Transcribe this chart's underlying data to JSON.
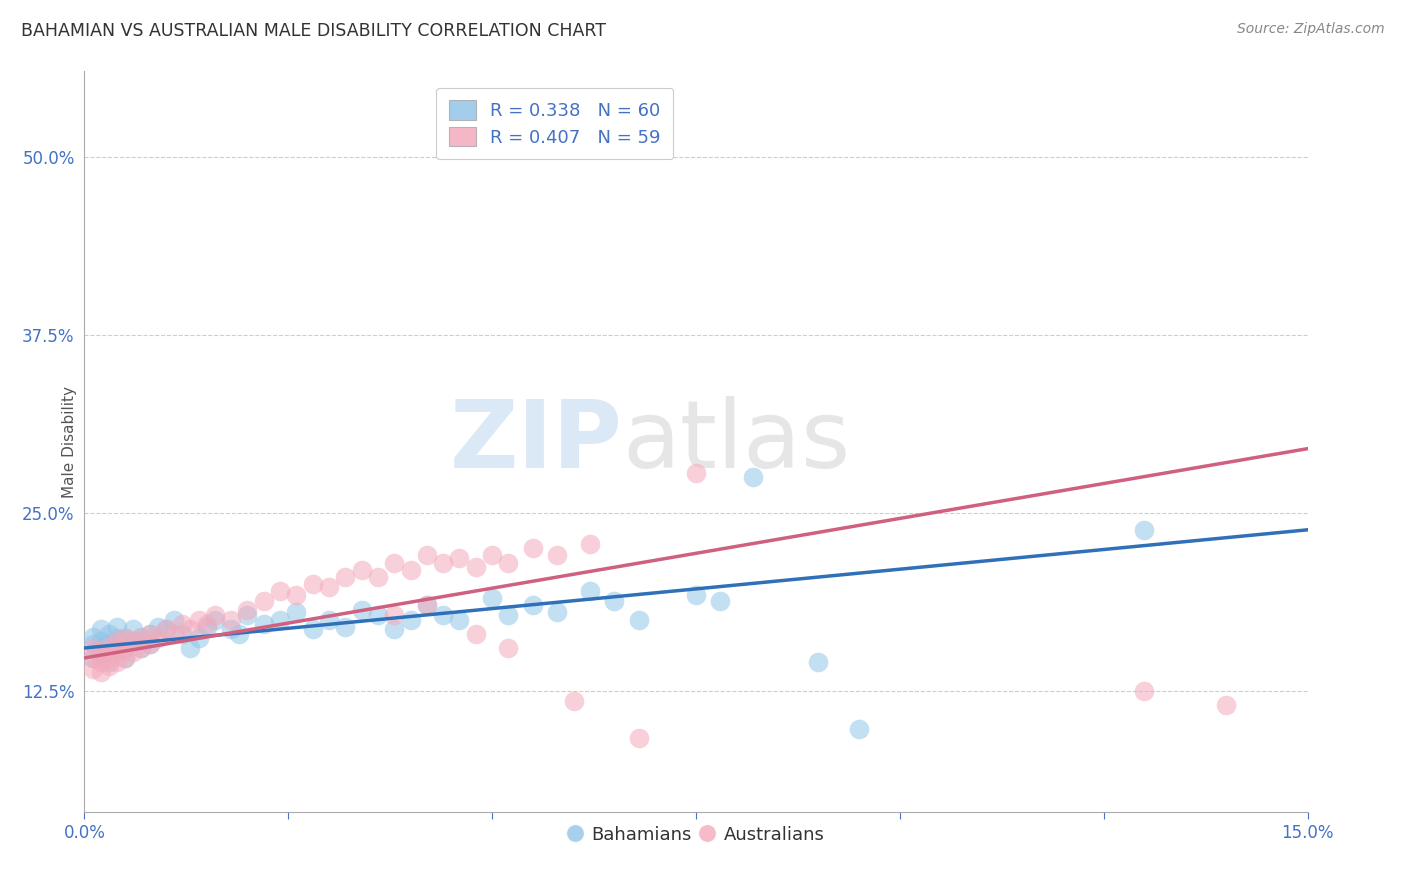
{
  "title": "BAHAMIAN VS AUSTRALIAN MALE DISABILITY CORRELATION CHART",
  "source": "Source: ZipAtlas.com",
  "ylabel": "Male Disability",
  "yticks": [
    "12.5%",
    "25.0%",
    "37.5%",
    "50.0%"
  ],
  "ytick_vals": [
    0.125,
    0.25,
    0.375,
    0.5
  ],
  "xlim": [
    0.0,
    0.15
  ],
  "ylim": [
    0.04,
    0.56
  ],
  "watermark_zip": "ZIP",
  "watermark_atlas": "atlas",
  "legend_blue_r": "R = 0.338",
  "legend_blue_n": "N = 60",
  "legend_pink_r": "R = 0.407",
  "legend_pink_n": "N = 59",
  "blue_color": "#92C5E8",
  "pink_color": "#F4AABB",
  "blue_line_color": "#3070B8",
  "pink_line_color": "#D06080",
  "title_color": "#333333",
  "axis_label_color": "#4472c4",
  "grid_color": "#c8c8c8",
  "background_color": "#ffffff",
  "blue_x": [
    0.001,
    0.001,
    0.001,
    0.002,
    0.002,
    0.002,
    0.002,
    0.003,
    0.003,
    0.003,
    0.003,
    0.004,
    0.004,
    0.004,
    0.005,
    0.005,
    0.005,
    0.006,
    0.006,
    0.007,
    0.007,
    0.008,
    0.008,
    0.009,
    0.01,
    0.011,
    0.012,
    0.013,
    0.014,
    0.015,
    0.016,
    0.018,
    0.019,
    0.02,
    0.022,
    0.024,
    0.026,
    0.028,
    0.03,
    0.032,
    0.034,
    0.036,
    0.038,
    0.04,
    0.042,
    0.044,
    0.046,
    0.05,
    0.052,
    0.055,
    0.058,
    0.062,
    0.065,
    0.068,
    0.075,
    0.078,
    0.082,
    0.09,
    0.095,
    0.13
  ],
  "blue_y": [
    0.148,
    0.158,
    0.163,
    0.15,
    0.155,
    0.16,
    0.168,
    0.145,
    0.152,
    0.158,
    0.165,
    0.155,
    0.162,
    0.17,
    0.148,
    0.155,
    0.162,
    0.16,
    0.168,
    0.155,
    0.163,
    0.158,
    0.165,
    0.17,
    0.168,
    0.175,
    0.165,
    0.155,
    0.162,
    0.17,
    0.175,
    0.168,
    0.165,
    0.178,
    0.172,
    0.175,
    0.18,
    0.168,
    0.175,
    0.17,
    0.182,
    0.178,
    0.168,
    0.175,
    0.185,
    0.178,
    0.175,
    0.19,
    0.178,
    0.185,
    0.18,
    0.195,
    0.188,
    0.175,
    0.192,
    0.188,
    0.275,
    0.145,
    0.098,
    0.238
  ],
  "pink_x": [
    0.001,
    0.001,
    0.001,
    0.002,
    0.002,
    0.002,
    0.003,
    0.003,
    0.003,
    0.004,
    0.004,
    0.004,
    0.005,
    0.005,
    0.005,
    0.006,
    0.006,
    0.007,
    0.007,
    0.008,
    0.008,
    0.009,
    0.01,
    0.011,
    0.012,
    0.013,
    0.014,
    0.015,
    0.016,
    0.018,
    0.02,
    0.022,
    0.024,
    0.026,
    0.028,
    0.03,
    0.032,
    0.034,
    0.036,
    0.038,
    0.04,
    0.042,
    0.044,
    0.046,
    0.048,
    0.05,
    0.052,
    0.055,
    0.058,
    0.062,
    0.038,
    0.042,
    0.048,
    0.052,
    0.06,
    0.068,
    0.075,
    0.13,
    0.14
  ],
  "pink_y": [
    0.14,
    0.148,
    0.155,
    0.138,
    0.145,
    0.152,
    0.142,
    0.148,
    0.156,
    0.145,
    0.152,
    0.16,
    0.148,
    0.155,
    0.162,
    0.152,
    0.16,
    0.155,
    0.162,
    0.158,
    0.165,
    0.162,
    0.168,
    0.165,
    0.172,
    0.168,
    0.175,
    0.172,
    0.178,
    0.175,
    0.182,
    0.188,
    0.195,
    0.192,
    0.2,
    0.198,
    0.205,
    0.21,
    0.205,
    0.215,
    0.21,
    0.22,
    0.215,
    0.218,
    0.212,
    0.22,
    0.215,
    0.225,
    0.22,
    0.228,
    0.178,
    0.185,
    0.165,
    0.155,
    0.118,
    0.092,
    0.278,
    0.125,
    0.115
  ]
}
